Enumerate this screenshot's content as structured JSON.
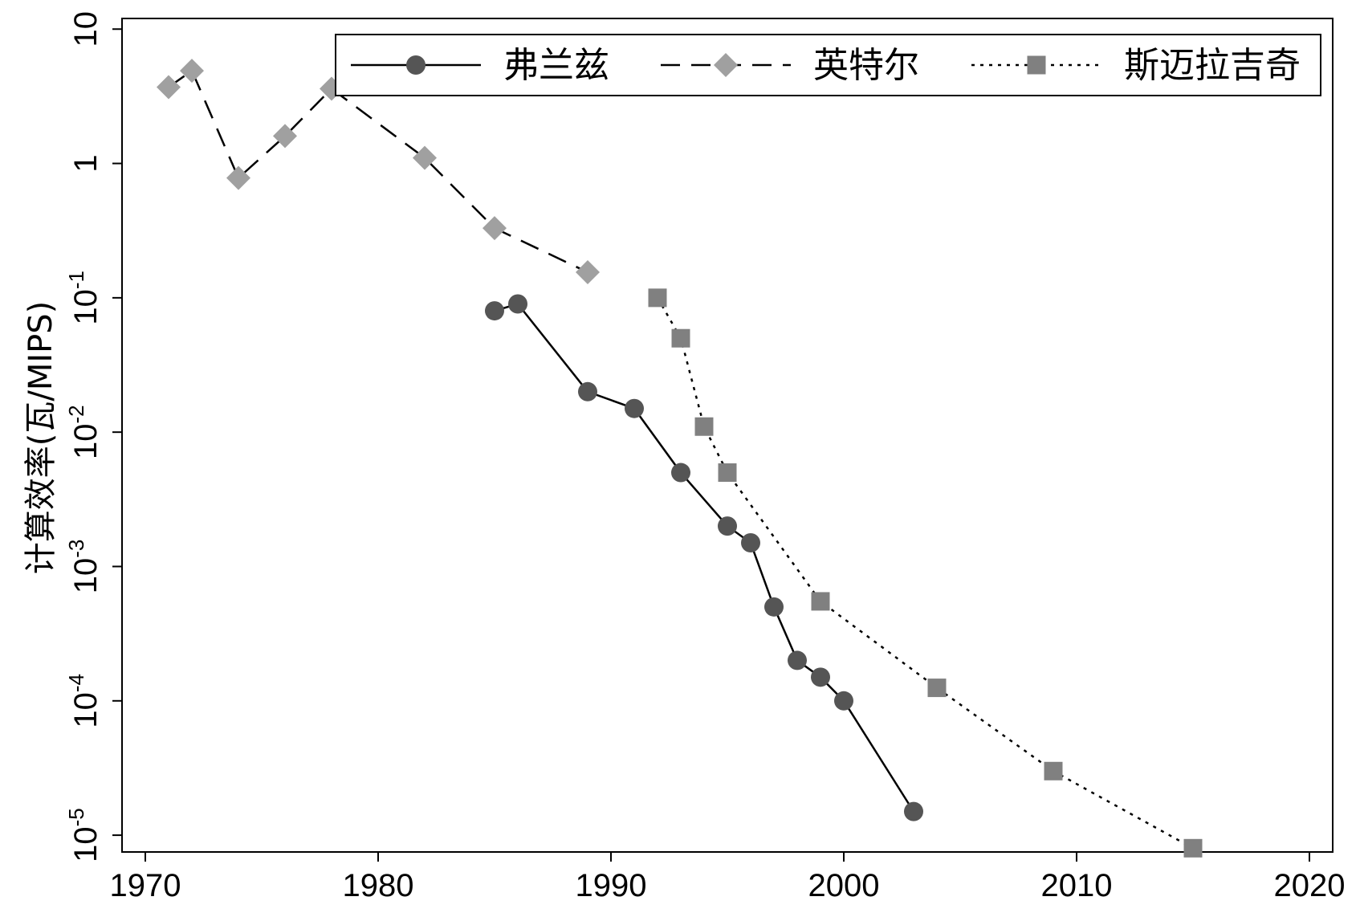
{
  "chart_data": {
    "type": "line",
    "title": "",
    "xlabel": "",
    "ylabel": "计算效率(瓦/MIPS)",
    "x_ticks": [
      "1970",
      "1980",
      "1990",
      "2000",
      "2010",
      "2020"
    ],
    "y_ticks": [
      {
        "value": 10,
        "base": "10",
        "exp": ""
      },
      {
        "value": 1,
        "base": "1",
        "exp": ""
      },
      {
        "value": 0.1,
        "base": "10",
        "exp": "-1"
      },
      {
        "value": 0.01,
        "base": "10",
        "exp": "-2"
      },
      {
        "value": 0.001,
        "base": "10",
        "exp": "-3"
      },
      {
        "value": 0.0001,
        "base": "10",
        "exp": "-4"
      },
      {
        "value": 1e-05,
        "base": "10",
        "exp": "-5"
      }
    ],
    "xlim": [
      1969,
      2021
    ],
    "ylim": [
      7.5e-06,
      12
    ],
    "y_scale": "log",
    "grid": false,
    "legend_position": "top",
    "series": [
      {
        "name": "弗兰兹",
        "line_style": "solid",
        "marker": "circle",
        "color": "#555555",
        "points": [
          [
            1985,
            0.08
          ],
          [
            1986,
            0.09
          ],
          [
            1989,
            0.02
          ],
          [
            1991,
            0.015
          ],
          [
            1993,
            0.005
          ],
          [
            1995,
            0.002
          ],
          [
            1996,
            0.0015
          ],
          [
            1997,
            0.0005
          ],
          [
            1998,
            0.0002
          ],
          [
            1999,
            0.00015
          ],
          [
            2000,
            0.0001
          ],
          [
            2003,
            1.5e-05
          ]
        ]
      },
      {
        "name": "英特尔",
        "line_style": "dashed",
        "marker": "diamond",
        "color": "#a0a0a0",
        "points": [
          [
            1971,
            3.7
          ],
          [
            1972,
            4.9
          ],
          [
            1974,
            0.78
          ],
          [
            1976,
            1.6
          ],
          [
            1978,
            3.6
          ],
          [
            1982,
            1.1
          ],
          [
            1985,
            0.33
          ],
          [
            1989,
            0.155
          ]
        ]
      },
      {
        "name": "斯迈拉吉奇",
        "line_style": "dotted",
        "marker": "square",
        "color": "#808080",
        "points": [
          [
            1992,
            0.1
          ],
          [
            1993,
            0.05
          ],
          [
            1994,
            0.011
          ],
          [
            1995,
            0.005
          ],
          [
            1999,
            0.00055
          ],
          [
            2004,
            0.000125
          ],
          [
            2009,
            3e-05
          ],
          [
            2015,
            8e-06
          ]
        ]
      }
    ]
  }
}
